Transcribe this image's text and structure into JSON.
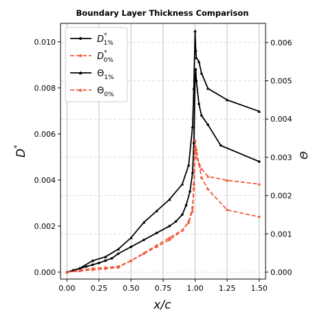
{
  "chart_data": {
    "type": "line",
    "title": "Boundary Layer Thickness Comparison",
    "xlabel": "x/c",
    "ylabel": "D*",
    "y2label": "Θ",
    "xlim": [
      -0.05,
      1.55
    ],
    "ylim": [
      -0.0003,
      0.0108
    ],
    "y2lim": [
      -0.00018,
      0.0065
    ],
    "xticks": [
      "0.00",
      "0.25",
      "0.50",
      "0.75",
      "1.00",
      "1.25",
      "1.50"
    ],
    "yticks": [
      "0.000",
      "0.002",
      "0.004",
      "0.006",
      "0.008",
      "0.010"
    ],
    "y2ticks": [
      "0.000",
      "0.001",
      "0.002",
      "0.003",
      "0.004",
      "0.005",
      "0.006"
    ],
    "grid": true,
    "legend_position": "top-left",
    "colors": {
      "black": "#000000",
      "red": "#f05a3c"
    },
    "legend": [
      {
        "base": "D",
        "sup": "*",
        "sub": "1%"
      },
      {
        "base": "D",
        "sup": "*",
        "sub": "0%"
      },
      {
        "base": "Θ",
        "sup": "",
        "sub": "1%"
      },
      {
        "base": "Θ",
        "sup": "",
        "sub": "0%"
      }
    ],
    "series": [
      {
        "axis": "left",
        "color": "#000000",
        "dash": false,
        "marker": "dot",
        "x": [
          0.0,
          0.05,
          0.1,
          0.15,
          0.2,
          0.25,
          0.3,
          0.35,
          0.4,
          0.5,
          0.6,
          0.7,
          0.8,
          0.85,
          0.9,
          0.93,
          0.96,
          0.98,
          0.99,
          1.0,
          1.005,
          1.01,
          1.03,
          1.05,
          1.1,
          1.2,
          1.5
        ],
        "y": [
          0.0,
          8e-05,
          0.00016,
          0.00024,
          0.00032,
          0.0004,
          0.0005,
          0.0006,
          0.0008,
          0.0011,
          0.0014,
          0.0017,
          0.002,
          0.0022,
          0.0025,
          0.0029,
          0.0035,
          0.0043,
          0.0056,
          0.0083,
          0.0088,
          0.0083,
          0.0073,
          0.0068,
          0.0064,
          0.0055,
          0.0048
        ]
      },
      {
        "axis": "left",
        "color": "#f05a3c",
        "dash": true,
        "marker": "dot",
        "x": [
          0.0,
          0.1,
          0.2,
          0.3,
          0.4,
          0.5,
          0.6,
          0.7,
          0.8,
          0.9,
          0.95,
          0.98,
          0.99,
          1.0,
          1.01,
          1.03,
          1.05,
          1.1,
          1.25,
          1.5
        ],
        "y": [
          0.0,
          5e-05,
          0.0001,
          0.00015,
          0.0002,
          0.0005,
          0.0008,
          0.0011,
          0.0014,
          0.0018,
          0.0022,
          0.0028,
          0.0038,
          0.0057,
          0.0053,
          0.0047,
          0.0041,
          0.0036,
          0.0027,
          0.0024
        ]
      },
      {
        "axis": "right",
        "color": "#000000",
        "dash": false,
        "marker": "triangle",
        "x": [
          0.0,
          0.05,
          0.1,
          0.2,
          0.3,
          0.4,
          0.5,
          0.6,
          0.7,
          0.8,
          0.9,
          0.95,
          0.98,
          0.99,
          1.0,
          1.005,
          1.01,
          1.03,
          1.05,
          1.1,
          1.25,
          1.5
        ],
        "y": [
          0.0,
          5e-05,
          0.0001,
          0.0003,
          0.0004,
          0.0006,
          0.0009,
          0.0013,
          0.0016,
          0.0019,
          0.0023,
          0.0028,
          0.0038,
          0.0048,
          0.0063,
          0.0058,
          0.0056,
          0.0055,
          0.0052,
          0.0048,
          0.0045,
          0.0042
        ]
      },
      {
        "axis": "right",
        "color": "#f05a3c",
        "dash": true,
        "marker": "triangle",
        "x": [
          0.0,
          0.1,
          0.2,
          0.3,
          0.4,
          0.5,
          0.6,
          0.7,
          0.8,
          0.9,
          0.95,
          0.98,
          0.99,
          1.0,
          1.01,
          1.05,
          1.1,
          1.25,
          1.5
        ],
        "y": [
          0.0,
          5e-05,
          0.0001,
          0.00012,
          0.00015,
          0.0003,
          0.0005,
          0.0007,
          0.0009,
          0.0011,
          0.0013,
          0.0016,
          0.0022,
          0.0032,
          0.003,
          0.0027,
          0.0025,
          0.0024,
          0.0023
        ]
      }
    ]
  }
}
